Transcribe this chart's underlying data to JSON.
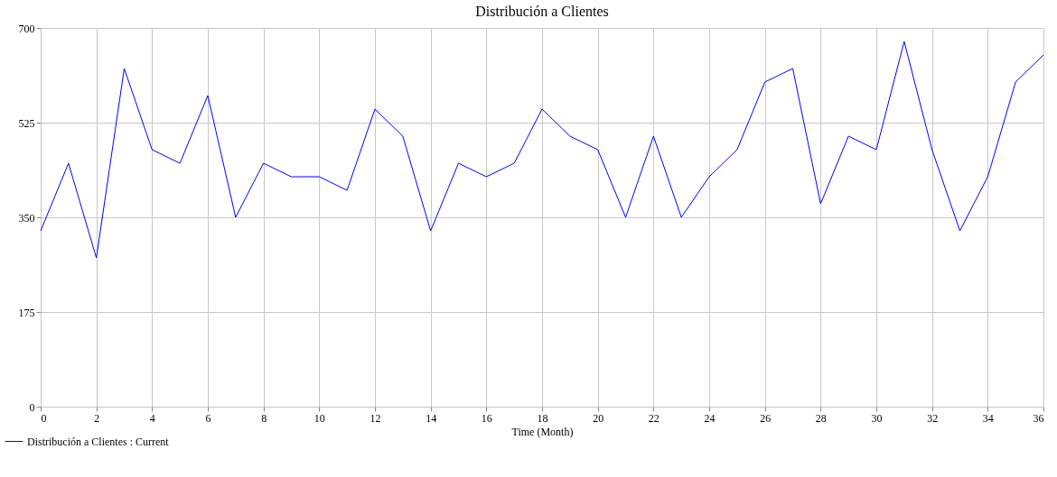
{
  "chart_data": {
    "type": "line",
    "title": "Distribución a Clientes",
    "xlabel": "Time (Month)",
    "x": [
      0,
      1,
      2,
      3,
      4,
      5,
      6,
      7,
      8,
      9,
      10,
      11,
      12,
      13,
      14,
      15,
      16,
      17,
      18,
      19,
      20,
      21,
      22,
      23,
      24,
      25,
      26,
      27,
      28,
      29,
      30,
      31,
      32,
      33,
      34,
      35,
      36
    ],
    "series": [
      {
        "name": "Distribución a Clientes : Current",
        "color": "#0000ff",
        "values": [
          325,
          450,
          275,
          625,
          475,
          450,
          575,
          350,
          450,
          425,
          425,
          400,
          550,
          500,
          325,
          450,
          425,
          450,
          550,
          500,
          475,
          350,
          500,
          350,
          425,
          475,
          600,
          625,
          375,
          500,
          475,
          675,
          475,
          325,
          425,
          600,
          650
        ]
      }
    ],
    "xlim": [
      0,
      36
    ],
    "xticks": [
      0,
      2,
      4,
      6,
      8,
      10,
      12,
      14,
      16,
      18,
      20,
      22,
      24,
      26,
      28,
      30,
      32,
      34,
      36
    ],
    "ylim": [
      0,
      700
    ],
    "yticks": [
      0,
      175,
      350,
      525,
      700
    ],
    "grid": true,
    "legend": "bottom left",
    "marker": "none",
    "line_style": "solid"
  }
}
